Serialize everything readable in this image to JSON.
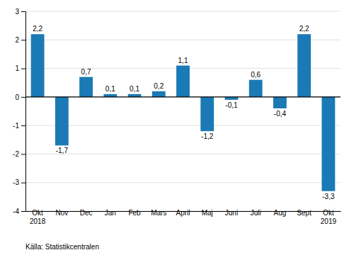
{
  "chart_data": {
    "type": "bar",
    "categories": [
      "Okt\n2018",
      "Nov",
      "Dec",
      "Jan",
      "Feb",
      "Mars",
      "April",
      "Maj",
      "Juni",
      "Juli",
      "Aug",
      "Sept",
      "Okt\n2019"
    ],
    "values": [
      2.2,
      -1.7,
      0.7,
      0.1,
      0.1,
      0.2,
      1.1,
      -1.2,
      -0.1,
      0.6,
      -0.4,
      2.2,
      -3.3
    ],
    "value_labels": [
      "2,2",
      "-1,7",
      "0,7",
      "0,1",
      "0,1",
      "0,2",
      "1,1",
      "-1,2",
      "-0,1",
      "0,6",
      "-0,4",
      "2,2",
      "-3,3"
    ],
    "data_labels": true,
    "color": "#1a7ab5",
    "ylim": [
      -4,
      3
    ],
    "yticks": [
      -4,
      -3,
      -2,
      -1,
      0,
      1,
      2,
      3
    ],
    "grid": true,
    "annotations": [
      "Källa: Statistikcentralen"
    ]
  }
}
